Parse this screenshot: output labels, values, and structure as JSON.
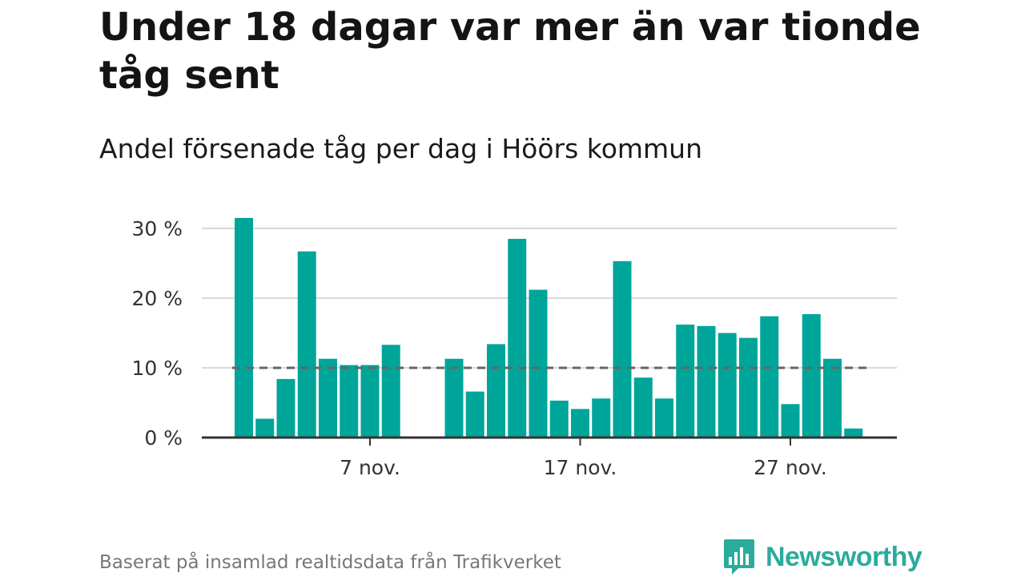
{
  "header": {
    "title": "Under 18 dagar var mer än var tionde tåg sent",
    "subtitle": "Andel försenade tåg per dag i Höörs kommun"
  },
  "footer": {
    "source": "Baserat på insamlad realtidsdata från Trafikverket",
    "brand": "Newsworthy"
  },
  "colors": {
    "bar": "#00a59a",
    "brand": "#2bab9c",
    "reference_line": "#666666",
    "grid": "#d9d9d9",
    "axis": "#333333"
  },
  "icons": {
    "brand_logo": "bar-chart-speech-bubble-icon"
  },
  "chart_data": {
    "type": "bar",
    "x": [
      1,
      2,
      3,
      4,
      5,
      6,
      7,
      8,
      9,
      10,
      11,
      12,
      13,
      14,
      15,
      16,
      17,
      18,
      19,
      20,
      21,
      22,
      23,
      24,
      25,
      26,
      27,
      28,
      29,
      30
    ],
    "values": [
      31.5,
      2.7,
      8.4,
      26.7,
      11.3,
      10.4,
      10.4,
      13.3,
      null,
      null,
      11.3,
      6.6,
      13.4,
      28.5,
      21.2,
      5.3,
      4.1,
      5.6,
      25.3,
      8.6,
      5.6,
      16.2,
      16.0,
      15.0,
      14.3,
      17.4,
      4.8,
      17.7,
      11.3,
      1.3
    ],
    "unit": "%",
    "ylim": [
      0,
      32
    ],
    "y_ticks": [
      0,
      10,
      20,
      30
    ],
    "y_tick_labels": [
      "0 %",
      "10 %",
      "20 %",
      "30 %"
    ],
    "x_ticks": [
      7,
      17,
      27
    ],
    "x_tick_labels": [
      "7 nov.",
      "17 nov.",
      "27 nov."
    ],
    "reference_line": 10,
    "grid": true,
    "legend": "none"
  }
}
